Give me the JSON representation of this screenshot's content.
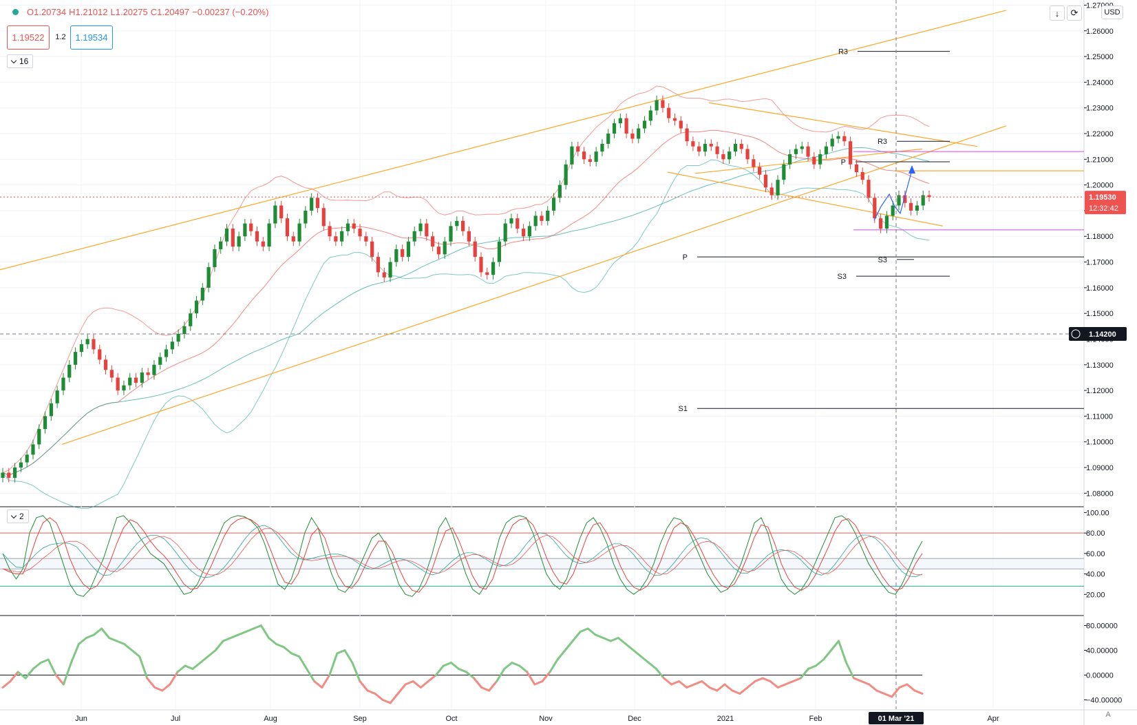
{
  "legend": {
    "open": "O1.20734",
    "high": "H1.21012",
    "low": "L1.20275",
    "close": "C1.20497",
    "change": "−0.00237 (−0.20%)",
    "sell_price": "1.19522",
    "spread": "1.2",
    "buy_price": "1.19534"
  },
  "panes": {
    "main_toggle": "16",
    "stoch_toggle": "2"
  },
  "toolbar": {
    "currency": "USD",
    "auto_label": "A",
    "down_arrow_icon": "arrow-down-icon",
    "refresh_icon": "refresh-icon"
  },
  "colors": {
    "up": "#26a69a",
    "down": "#ef5350",
    "candle_up": "#1e8c34",
    "candle_down": "#e8413c",
    "orange": "#ffa726",
    "violet": "#e040fb",
    "current_price_bg": "#ef5350",
    "crosshair_label_bg": "#131722"
  },
  "chart_data": [
    {
      "type": "candlestick",
      "symbol": "EURUSD",
      "x_ticks": [
        "Jun",
        "Jul",
        "Aug",
        "Sep",
        "Oct",
        "Nov",
        "Dec",
        "2021",
        "Feb",
        "01 Mar '21",
        "Apr"
      ],
      "y_ticks": [
        "1.26000",
        "1.25000",
        "1.24000",
        "1.23000",
        "1.22000",
        "1.21000",
        "1.20000",
        "1.19000",
        "1.18000",
        "1.17000",
        "1.16000",
        "1.15000",
        "1.14000",
        "1.13000",
        "1.12000",
        "1.11000",
        "1.10000",
        "1.09000",
        "1.08000",
        "1.27000"
      ],
      "ylim": [
        1.075,
        1.272
      ],
      "close_series": [
        1.088,
        1.086,
        1.09,
        1.092,
        1.095,
        1.099,
        1.105,
        1.11,
        1.115,
        1.12,
        1.125,
        1.13,
        1.135,
        1.138,
        1.14,
        1.136,
        1.132,
        1.128,
        1.125,
        1.12,
        1.122,
        1.125,
        1.123,
        1.127,
        1.126,
        1.13,
        1.133,
        1.136,
        1.139,
        1.142,
        1.145,
        1.15,
        1.155,
        1.16,
        1.168,
        1.175,
        1.178,
        1.183,
        1.176,
        1.18,
        1.185,
        1.182,
        1.178,
        1.176,
        1.185,
        1.192,
        1.187,
        1.18,
        1.178,
        1.185,
        1.19,
        1.195,
        1.191,
        1.184,
        1.18,
        1.178,
        1.182,
        1.185,
        1.183,
        1.18,
        1.178,
        1.172,
        1.166,
        1.164,
        1.17,
        1.175,
        1.172,
        1.178,
        1.182,
        1.185,
        1.18,
        1.176,
        1.173,
        1.178,
        1.184,
        1.186,
        1.182,
        1.178,
        1.172,
        1.166,
        1.165,
        1.17,
        1.178,
        1.185,
        1.187,
        1.183,
        1.18,
        1.184,
        1.188,
        1.186,
        1.19,
        1.195,
        1.2,
        1.208,
        1.215,
        1.213,
        1.21,
        1.209,
        1.213,
        1.216,
        1.22,
        1.224,
        1.226,
        1.22,
        1.218,
        1.222,
        1.225,
        1.229,
        1.233,
        1.23,
        1.226,
        1.225,
        1.222,
        1.217,
        1.215,
        1.213,
        1.216,
        1.215,
        1.212,
        1.21,
        1.213,
        1.216,
        1.214,
        1.21,
        1.207,
        1.204,
        1.199,
        1.196,
        1.202,
        1.208,
        1.212,
        1.214,
        1.215,
        1.211,
        1.208,
        1.212,
        1.215,
        1.218,
        1.219,
        1.217,
        1.208,
        1.205,
        1.202,
        1.195,
        1.187,
        1.183,
        1.188,
        1.192,
        1.196,
        1.193,
        1.19,
        1.192,
        1.196,
        1.1953
      ],
      "levels": [
        {
          "label": "R3",
          "value": 1.252
        },
        {
          "label": "R3",
          "value": 1.217
        },
        {
          "label": "P",
          "value": 1.209
        },
        {
          "label": "P",
          "value": 1.172
        },
        {
          "label": "S3",
          "value": 1.171
        },
        {
          "label": "S3",
          "value": 1.1645
        },
        {
          "label": "S1",
          "value": 1.113
        }
      ],
      "current_price": {
        "value": "1.19530",
        "countdown": "12:32:42"
      },
      "crosshair_price": "1.14200"
    },
    {
      "type": "line",
      "name": "stochastic",
      "y_ticks": [
        "100.00",
        "80.00",
        "60.00",
        "40.00",
        "20.00"
      ],
      "ylim": [
        0,
        105
      ],
      "k_series": [
        60,
        45,
        35,
        45,
        80,
        95,
        97,
        90,
        70,
        50,
        30,
        20,
        18,
        25,
        40,
        55,
        75,
        95,
        97,
        90,
        80,
        70,
        60,
        55,
        50,
        40,
        30,
        20,
        22,
        30,
        45,
        60,
        75,
        90,
        95,
        97,
        96,
        92,
        85,
        70,
        50,
        30,
        25,
        35,
        55,
        80,
        95,
        85,
        60,
        40,
        25,
        22,
        30,
        45,
        60,
        75,
        80,
        70,
        50,
        30,
        20,
        18,
        25,
        40,
        60,
        85,
        95,
        80,
        60,
        40,
        25,
        20,
        30,
        50,
        75,
        90,
        95,
        97,
        95,
        80,
        60,
        40,
        30,
        25,
        35,
        55,
        75,
        90,
        95,
        85,
        70,
        50,
        35,
        25,
        20,
        25,
        35,
        50,
        70,
        85,
        95,
        93,
        85,
        70,
        55,
        40,
        30,
        22,
        25,
        35,
        50,
        70,
        90,
        95,
        80,
        55,
        35,
        25,
        20,
        25,
        35,
        50,
        65,
        80,
        95,
        97,
        92,
        80,
        65,
        50,
        40,
        30,
        22,
        20,
        30,
        45,
        60,
        72
      ],
      "d_series": [
        45,
        42,
        40,
        40,
        55,
        75,
        90,
        95,
        90,
        75,
        55,
        40,
        30,
        25,
        28,
        38,
        52,
        70,
        85,
        93,
        90,
        82,
        72,
        64,
        58,
        50,
        40,
        30,
        25,
        26,
        35,
        47,
        62,
        77,
        88,
        93,
        95,
        93,
        88,
        78,
        62,
        45,
        32,
        30,
        40,
        58,
        78,
        85,
        75,
        55,
        38,
        28,
        26,
        34,
        48,
        62,
        72,
        72,
        62,
        46,
        32,
        24,
        22,
        30,
        45,
        65,
        82,
        85,
        72,
        55,
        38,
        27,
        25,
        35,
        55,
        75,
        88,
        93,
        94,
        88,
        74,
        56,
        42,
        32,
        30,
        40,
        58,
        76,
        88,
        90,
        80,
        65,
        48,
        35,
        27,
        24,
        28,
        38,
        52,
        70,
        85,
        90,
        87,
        77,
        64,
        50,
        38,
        29,
        26,
        30,
        42,
        58,
        76,
        88,
        86,
        70,
        50,
        36,
        27,
        24,
        28,
        38,
        52,
        66,
        82,
        92,
        94,
        88,
        76,
        62,
        50,
        38,
        29,
        24,
        26,
        36,
        50,
        60
      ],
      "levels": [
        80,
        55,
        45,
        28
      ]
    },
    {
      "type": "line",
      "name": "oscillator",
      "y_ticks": [
        "80.00000",
        "40.00000",
        "0.00000",
        "−40.00000"
      ],
      "ylim": [
        -55,
        95
      ],
      "series": [
        -20,
        -10,
        5,
        -5,
        10,
        20,
        25,
        0,
        -15,
        20,
        50,
        60,
        65,
        75,
        60,
        55,
        50,
        40,
        30,
        -5,
        -20,
        -25,
        -15,
        5,
        15,
        10,
        20,
        30,
        40,
        55,
        60,
        65,
        70,
        75,
        80,
        60,
        50,
        45,
        35,
        30,
        10,
        -10,
        -20,
        0,
        35,
        40,
        20,
        -10,
        -25,
        -30,
        -40,
        -45,
        -30,
        -15,
        -10,
        -20,
        -10,
        0,
        15,
        20,
        10,
        5,
        -5,
        -20,
        -25,
        -10,
        10,
        20,
        15,
        5,
        -15,
        -10,
        5,
        25,
        40,
        55,
        70,
        75,
        65,
        60,
        55,
        60,
        50,
        40,
        30,
        20,
        10,
        -5,
        -15,
        -10,
        -20,
        -15,
        -10,
        -20,
        -25,
        -15,
        -25,
        -30,
        -20,
        -10,
        -5,
        -10,
        -20,
        -15,
        -10,
        -5,
        10,
        15,
        25,
        40,
        55,
        20,
        -5,
        -10,
        -15,
        -25,
        -30,
        -35,
        -20,
        -15,
        -25,
        -30
      ],
      "zero_line": 0
    }
  ]
}
